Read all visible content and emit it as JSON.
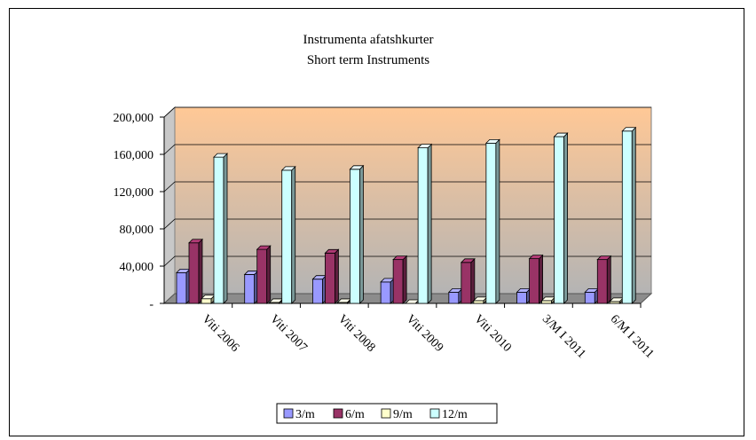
{
  "chart_data": {
    "type": "bar",
    "title": "Instrumenta afatshkurter",
    "subtitle": "Short term Instruments",
    "categories": [
      "Viti 2006",
      "Viti 2007",
      "Viti 2008",
      "Viti 2009",
      "Viti 2010",
      "3/M I 2011",
      "6/M I 2011"
    ],
    "series": [
      {
        "name": "3/m",
        "values": [
          33000,
          31000,
          26000,
          23000,
          12000,
          12000,
          12000
        ]
      },
      {
        "name": "6/m",
        "values": [
          65000,
          58000,
          54000,
          47000,
          44000,
          48000,
          47000
        ]
      },
      {
        "name": "9/m",
        "values": [
          5000,
          1000,
          1000,
          0,
          3000,
          3000,
          2000
        ]
      },
      {
        "name": "12/m",
        "values": [
          157000,
          143000,
          144000,
          167000,
          172000,
          179000,
          185000
        ]
      }
    ],
    "yticks": [
      "-",
      "40,000",
      "80,000",
      "120,000",
      "160,000",
      "200,000"
    ],
    "ylim": [
      0,
      200000
    ],
    "grid": true,
    "legend": "bottom",
    "colors": {
      "3/m": "#9999ff",
      "6/m": "#993366",
      "9/m": "#ffffcc",
      "12/m": "#ccffff",
      "wall_top": "#ffc896",
      "wall_bottom": "#b4b4b4"
    }
  }
}
